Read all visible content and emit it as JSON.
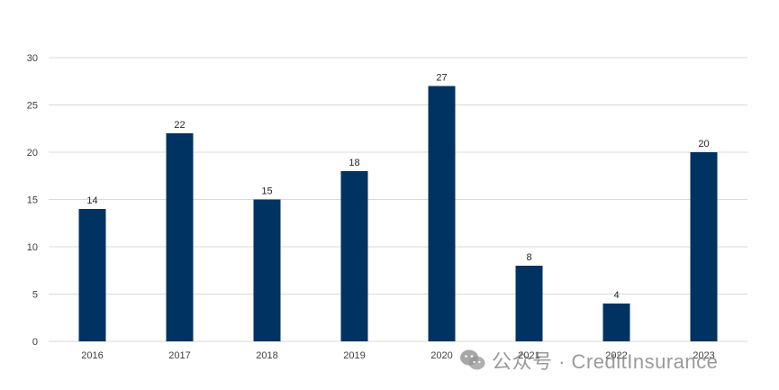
{
  "chart_data": {
    "type": "bar",
    "categories": [
      "2016",
      "2017",
      "2018",
      "2019",
      "2020",
      "2021",
      "2022",
      "2023"
    ],
    "values": [
      14,
      22,
      15,
      18,
      27,
      8,
      4,
      20
    ],
    "title": "",
    "xlabel": "",
    "ylabel": "",
    "ylim": [
      0,
      30
    ],
    "yticks": [
      0,
      5,
      10,
      15,
      20,
      25,
      30
    ],
    "grid": true,
    "legend": "none",
    "data_labels": [
      "14",
      "22",
      "15",
      "18",
      "27",
      "8",
      "4",
      "20"
    ],
    "bar_color": "#003361"
  },
  "watermark": {
    "icon": "wechat-icon",
    "text": "公众号 · CreditInsurance"
  }
}
